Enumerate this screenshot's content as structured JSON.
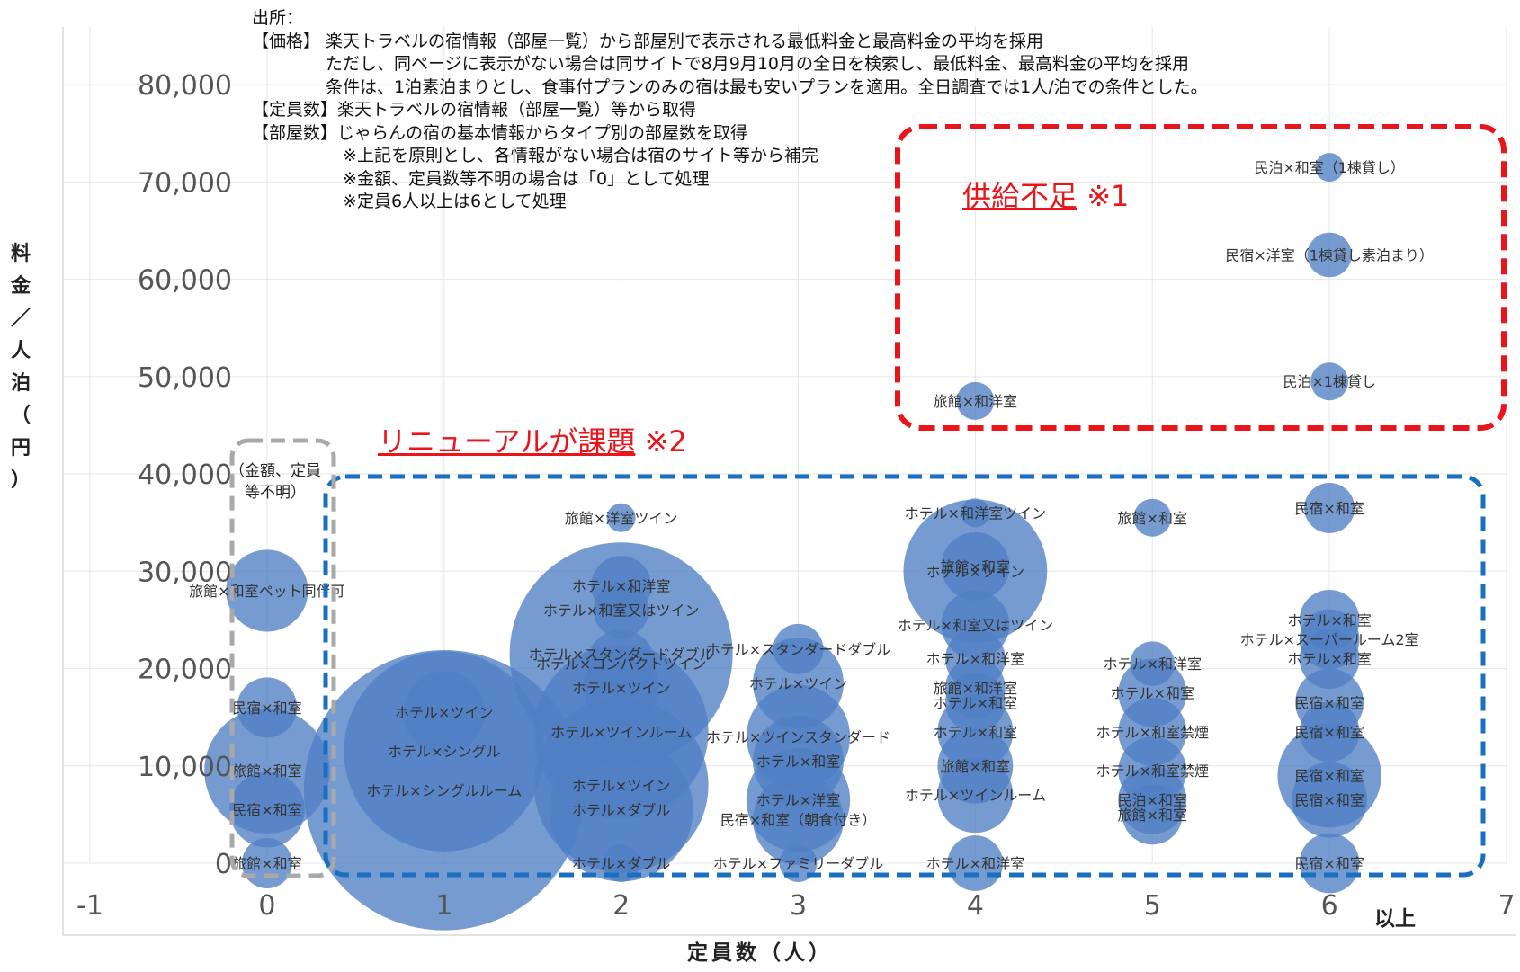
{
  "source_note": {
    "lines": [
      "出所：",
      "【価格】 楽天トラベルの宿情報（部屋一覧）から部屋別で表示される最低料金と最高料金の平均を採用",
      "　　　　 ただし、同ページに表示がない場合は同サイトで8月9月10月の全日を検索し、最低料金、最高料金の平均を採用",
      "　　　　 条件は、1泊素泊まりとし、食事付プランのみの宿は最も安いプランを適用。全日調査では1人/泊での条件とした。",
      "【定員数】楽天トラベルの宿情報（部屋一覧）等から取得",
      "【部屋数】じゃらんの宿の基本情報からタイプ別の部屋数を取得",
      "　　　　　 ※上記を原則とし、各情報がない場合は宿のサイト等から補完",
      "　　　　　 ※金額、定員数等不明の場合は「0」として処理",
      "　　　　　 ※定員6人以上は6として処理"
    ]
  },
  "annotations": {
    "shortage_label": "供給不足",
    "shortage_note": " ※1",
    "renewal_label": "リニューアルが課題",
    "renewal_note": " ※2",
    "unknown_label_line1": "（金額、定員",
    "unknown_label_line2": "等不明）",
    "six_plus": "以上"
  },
  "colors": {
    "bubble": "#4f7fc4",
    "red_box": "#e8151b",
    "blue_box": "#1a6fc0",
    "gray_box": "#a9a9a9",
    "grid": "#e6e6e6",
    "tick_text": "#555555"
  },
  "chart_data": {
    "type": "scatter",
    "subtype": "bubble",
    "xlabel": "定員数（人）",
    "ylabel": "料金／人泊（円）",
    "xlim": [
      -1,
      7
    ],
    "ylim": [
      0,
      85000
    ],
    "x_ticks": [
      "-1",
      "0",
      "1",
      "2",
      "3",
      "4",
      "5",
      "6",
      "7"
    ],
    "y_ticks": [
      "0",
      "10,000",
      "20,000",
      "30,000",
      "40,000",
      "50,000",
      "60,000",
      "70,000",
      "80,000"
    ],
    "grid": true,
    "points": [
      {
        "x": 6,
        "y": 71500,
        "size": 1,
        "label": "民泊×和室（1棟貸し）"
      },
      {
        "x": 6,
        "y": 62500,
        "size": 3,
        "label": "民宿×洋室（1棟貸し素泊まり）"
      },
      {
        "x": 6,
        "y": 49500,
        "size": 2,
        "label": "民泊×1棟貸し"
      },
      {
        "x": 4,
        "y": 47500,
        "size": 2,
        "label": "旅館×和洋室"
      },
      {
        "x": 2,
        "y": 35500,
        "size": 1,
        "label": "旅館×洋室ツイン"
      },
      {
        "x": 4,
        "y": 36000,
        "size": 1,
        "label": "ホテル×和洋室ツイン"
      },
      {
        "x": 5,
        "y": 35500,
        "size": 2,
        "label": "旅館×和室"
      },
      {
        "x": 6,
        "y": 36500,
        "size": 4,
        "label": "民宿×和室"
      },
      {
        "x": 0,
        "y": 28000,
        "size": 12,
        "label": "旅館×和室ペット同伴可"
      },
      {
        "x": 2,
        "y": 28500,
        "size": 6,
        "label": "ホテル×和洋室"
      },
      {
        "x": 2,
        "y": 26000,
        "size": 5,
        "label": "ホテル×和室又はツイン"
      },
      {
        "x": 4,
        "y": 30000,
        "size": 40,
        "label": "ホテル×ツイン"
      },
      {
        "x": 4,
        "y": 30500,
        "size": 8,
        "label": "旅館×和室"
      },
      {
        "x": 4,
        "y": 24500,
        "size": 8,
        "label": "ホテル×和室又はツイン"
      },
      {
        "x": 6,
        "y": 25000,
        "size": 6,
        "label": "ホテル×和室"
      },
      {
        "x": 6,
        "y": 23000,
        "size": 6,
        "label": "ホテル×スーパールーム2室"
      },
      {
        "x": 2,
        "y": 21500,
        "size": 100,
        "label": "ホテル×スタンダードダブル"
      },
      {
        "x": 2,
        "y": 20500,
        "size": 8,
        "label": "ホテル×コンパクトツイン"
      },
      {
        "x": 3,
        "y": 22000,
        "size": 4,
        "label": "ホテル×スタンダードダブル"
      },
      {
        "x": 4,
        "y": 21000,
        "size": 6,
        "label": "ホテル×和洋室"
      },
      {
        "x": 5,
        "y": 20500,
        "size": 3,
        "label": "ホテル×和洋室"
      },
      {
        "x": 6,
        "y": 21000,
        "size": 6,
        "label": "ホテル×和室"
      },
      {
        "x": 2,
        "y": 18000,
        "size": 10,
        "label": "ホテル×ツイン"
      },
      {
        "x": 3,
        "y": 18500,
        "size": 15,
        "label": "ホテル×ツイン"
      },
      {
        "x": 4,
        "y": 18000,
        "size": 6,
        "label": "旅館×和洋室"
      },
      {
        "x": 5,
        "y": 17500,
        "size": 8,
        "label": "ホテル×和室"
      },
      {
        "x": 0,
        "y": 16000,
        "size": 6,
        "label": "民宿×和室"
      },
      {
        "x": 1,
        "y": 15500,
        "size": 12,
        "label": "ホテル×ツイン"
      },
      {
        "x": 4,
        "y": 16500,
        "size": 6,
        "label": "ホテル×和室"
      },
      {
        "x": 6,
        "y": 16500,
        "size": 8,
        "label": "民宿×和室"
      },
      {
        "x": 2,
        "y": 13500,
        "size": 60,
        "label": "ホテル×ツインルーム"
      },
      {
        "x": 3,
        "y": 13000,
        "size": 20,
        "label": "ホテル×ツインスタンダード"
      },
      {
        "x": 4,
        "y": 13500,
        "size": 10,
        "label": "ホテル×和室"
      },
      {
        "x": 5,
        "y": 13500,
        "size": 8,
        "label": "ホテル×和室禁煙"
      },
      {
        "x": 6,
        "y": 13500,
        "size": 6,
        "label": "民宿×和室"
      },
      {
        "x": 1,
        "y": 11500,
        "size": 80,
        "label": "ホテル×シングル"
      },
      {
        "x": 0,
        "y": 9500,
        "size": 30,
        "label": "旅館×和室"
      },
      {
        "x": 3,
        "y": 10500,
        "size": 15,
        "label": "ホテル×和室"
      },
      {
        "x": 4,
        "y": 10000,
        "size": 10,
        "label": "旅館×和室"
      },
      {
        "x": 5,
        "y": 9500,
        "size": 8,
        "label": "ホテル×和室禁煙"
      },
      {
        "x": 6,
        "y": 9000,
        "size": 20,
        "label": "民宿×和室"
      },
      {
        "x": 2,
        "y": 8000,
        "size": 60,
        "label": "ホテル×ツイン"
      },
      {
        "x": 1,
        "y": 7500,
        "size": 160,
        "label": "ホテル×シングルルーム"
      },
      {
        "x": 3,
        "y": 6500,
        "size": 20,
        "label": "ホテル×洋室"
      },
      {
        "x": 4,
        "y": 7000,
        "size": 10,
        "label": "ホテル×ツインルーム"
      },
      {
        "x": 5,
        "y": 6500,
        "size": 8,
        "label": "民泊×和室"
      },
      {
        "x": 6,
        "y": 6500,
        "size": 10,
        "label": "民宿×和室"
      },
      {
        "x": 2,
        "y": 5500,
        "size": 40,
        "label": "ホテル×ダブル"
      },
      {
        "x": 3,
        "y": 4500,
        "size": 15,
        "label": "民宿×和室（朝食付き）"
      },
      {
        "x": 5,
        "y": 5000,
        "size": 6,
        "label": "旅館×和室"
      },
      {
        "x": 0,
        "y": 5500,
        "size": 10,
        "label": "民宿×和室"
      },
      {
        "x": 2,
        "y": 0,
        "size": 2,
        "label": "ホテル×ダブル"
      },
      {
        "x": 3,
        "y": 0,
        "size": 2,
        "label": "ホテル×ファミリーダブル"
      },
      {
        "x": 4,
        "y": 0,
        "size": 5,
        "label": "ホテル×和洋室"
      },
      {
        "x": 6,
        "y": 0,
        "size": 6,
        "label": "民宿×和室"
      },
      {
        "x": 0,
        "y": 0,
        "size": 4,
        "label": "旅館×和室"
      }
    ]
  }
}
